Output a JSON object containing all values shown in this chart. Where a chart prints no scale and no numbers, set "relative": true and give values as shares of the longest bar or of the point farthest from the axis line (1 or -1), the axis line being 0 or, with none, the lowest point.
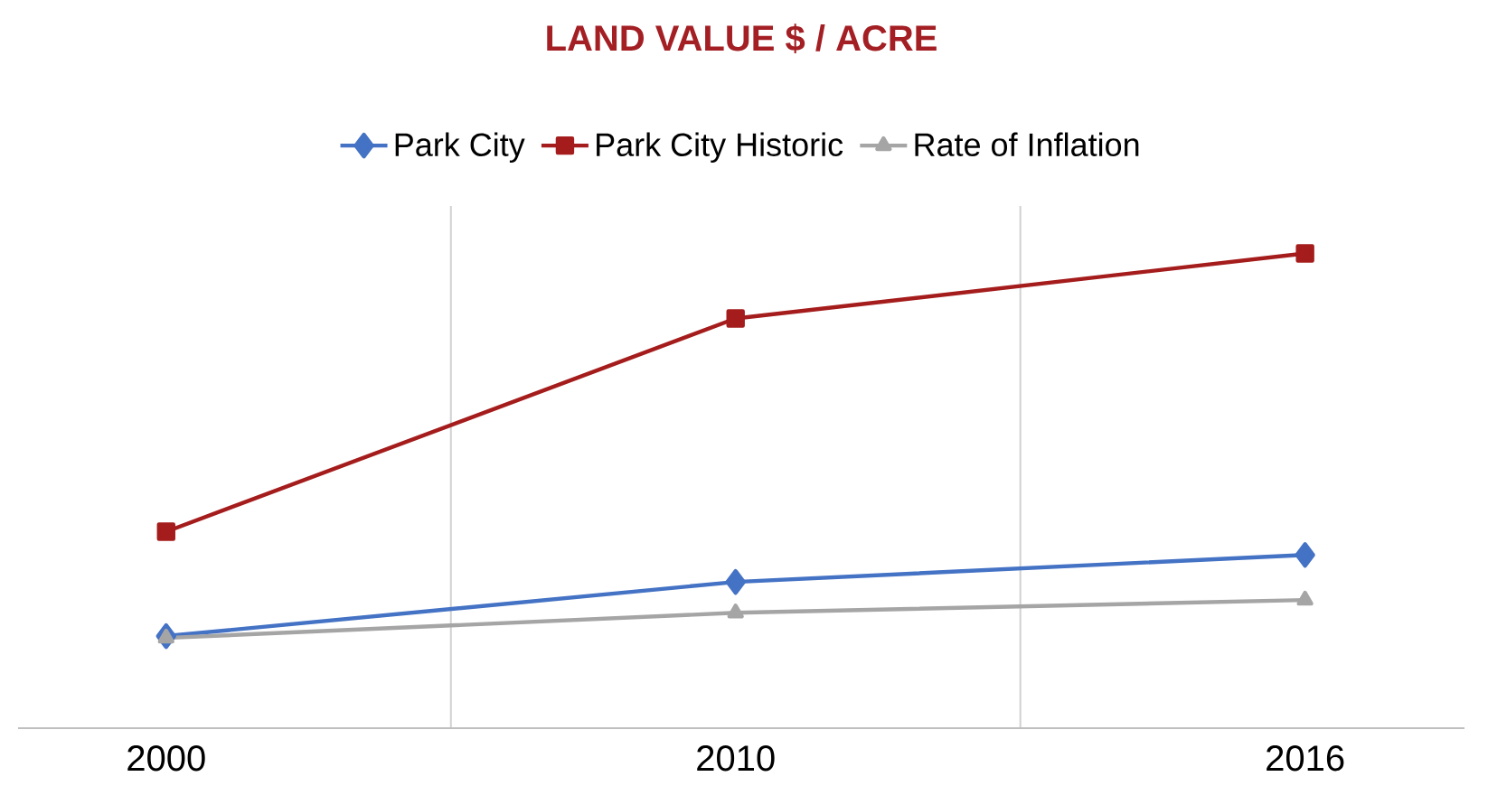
{
  "chart_data": {
    "type": "line",
    "title": "LAND VALUE $ / ACRE",
    "relative": true,
    "categories": [
      "2000",
      "2010",
      "2016"
    ],
    "series": [
      {
        "name": "Park City",
        "color": "#4472c4",
        "marker": "diamond",
        "values": [
          0.194,
          0.308,
          0.365
        ]
      },
      {
        "name": "Park City Historic",
        "color": "#a51c1c",
        "marker": "square",
        "values": [
          0.414,
          0.863,
          1
        ]
      },
      {
        "name": "Rate of Inflation",
        "color": "#a5a5a5",
        "marker": "triangle",
        "values": [
          0.19,
          0.243,
          0.27
        ]
      }
    ],
    "grid": "x",
    "legend": "top",
    "line_style": "solid"
  }
}
